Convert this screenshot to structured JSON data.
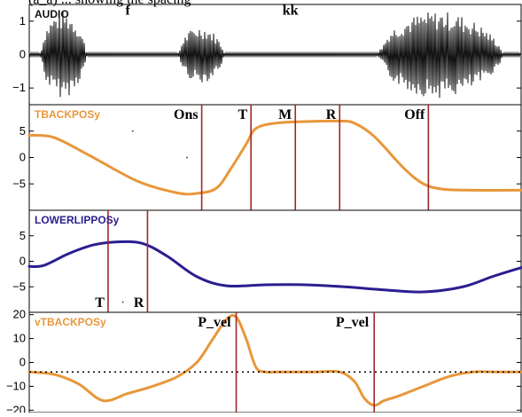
{
  "top_caption": "(a_a)  ... showing the spacing",
  "colors": {
    "audio": "#111111",
    "orange": "#e8973a",
    "blue": "#2b1e8f",
    "landmark": "#a02828",
    "tbackpos_label": "#e8973a",
    "lowerlip_label": "#2b1e8f",
    "vtbackpos_label": "#e8973a"
  },
  "chart_data": [
    {
      "type": "line",
      "name": "AUDIO",
      "title": "AUDIO",
      "ylim": [
        -1.5,
        1.5
      ],
      "yticks": [
        1,
        0,
        -1
      ],
      "ytick_labels": [
        "1",
        "0",
        "−1"
      ],
      "xlim": [
        0,
        100
      ],
      "bursts": [
        {
          "start": 2,
          "end": 13,
          "amp": 1.3
        },
        {
          "start": 30,
          "end": 41,
          "amp": 0.85
        },
        {
          "start": 70,
          "end": 100,
          "amp": 1.3
        }
      ],
      "noise_amp": 0.05,
      "annotations": [
        {
          "text": "f",
          "x": 20,
          "y": 1.2
        },
        {
          "text": "kk",
          "x": 53,
          "y": 1.2
        }
      ]
    },
    {
      "type": "line",
      "name": "TBACKPOSy",
      "title": "TBACKPOSy",
      "ylim": [
        -10,
        10
      ],
      "yticks": [
        5,
        0,
        -5
      ],
      "ytick_labels": [
        "5",
        "0",
        "−5"
      ],
      "xlim": [
        0,
        100
      ],
      "x": [
        0,
        5,
        12,
        22,
        30,
        34,
        38,
        41,
        44,
        46,
        50,
        56,
        63,
        66,
        70,
        76,
        80,
        84,
        90,
        100
      ],
      "values": [
        4.2,
        3.8,
        0.5,
        -4.5,
        -6.7,
        -6.8,
        -5.8,
        -2,
        2.5,
        5.5,
        6.5,
        6.8,
        6.9,
        6.5,
        4,
        -2,
        -5,
        -6,
        -6.2,
        -6.2
      ],
      "landmarks": [
        {
          "label": "Ons",
          "x": 35
        },
        {
          "label": "T",
          "x": 45
        },
        {
          "label": "M",
          "x": 54
        },
        {
          "label": "R",
          "x": 63
        },
        {
          "label": "Off",
          "x": 81
        }
      ],
      "dots": [
        {
          "x": 21,
          "y": 5
        },
        {
          "x": 32,
          "y": 0
        }
      ]
    },
    {
      "type": "line",
      "name": "LOWERLIPPOSy",
      "title": "LOWERLIPPOSy",
      "ylim": [
        -10,
        10
      ],
      "yticks": [
        5,
        0,
        -5
      ],
      "ytick_labels": [
        "5",
        "0",
        "−5"
      ],
      "xlim": [
        0,
        100
      ],
      "x": [
        0,
        3,
        8,
        13,
        18,
        23,
        28,
        34,
        40,
        48,
        56,
        64,
        72,
        80,
        88,
        94,
        100
      ],
      "values": [
        -1,
        -0.8,
        1.5,
        3.2,
        3.8,
        3.5,
        1,
        -3,
        -4.8,
        -4.6,
        -4.6,
        -5,
        -5.6,
        -6,
        -5,
        -3,
        -1.2
      ],
      "landmarks": [
        {
          "label": "T",
          "x": 16
        },
        {
          "label": "R",
          "x": 24
        }
      ],
      "dots": [
        {
          "x": 19,
          "y": -8
        }
      ]
    },
    {
      "type": "line",
      "name": "vTBACKPOSy",
      "title": "vTBACKPOSy",
      "ylim": [
        -21,
        21
      ],
      "yticks": [
        20,
        10,
        0,
        -10,
        -20
      ],
      "ytick_labels": [
        "20",
        "10",
        "0",
        "−10",
        "−20"
      ],
      "xlim": [
        0,
        100
      ],
      "baseline": -4,
      "x": [
        0,
        5,
        10,
        15,
        20,
        25,
        30,
        34,
        37,
        40,
        42,
        44,
        46,
        48,
        50,
        53,
        58,
        63,
        66,
        68,
        70,
        72,
        75,
        80,
        85,
        90,
        95,
        100
      ],
      "values": [
        -4,
        -5,
        -9,
        -16,
        -13,
        -10,
        -6,
        0,
        9,
        18,
        19,
        10,
        -2,
        -4,
        -4,
        -4,
        -4,
        -4,
        -8,
        -15,
        -18,
        -16,
        -14,
        -10,
        -6,
        -4,
        -4,
        -4
      ],
      "landmarks": [
        {
          "label": "P_vel",
          "x": 42
        },
        {
          "label": "P_vel",
          "x": 70
        }
      ]
    }
  ]
}
